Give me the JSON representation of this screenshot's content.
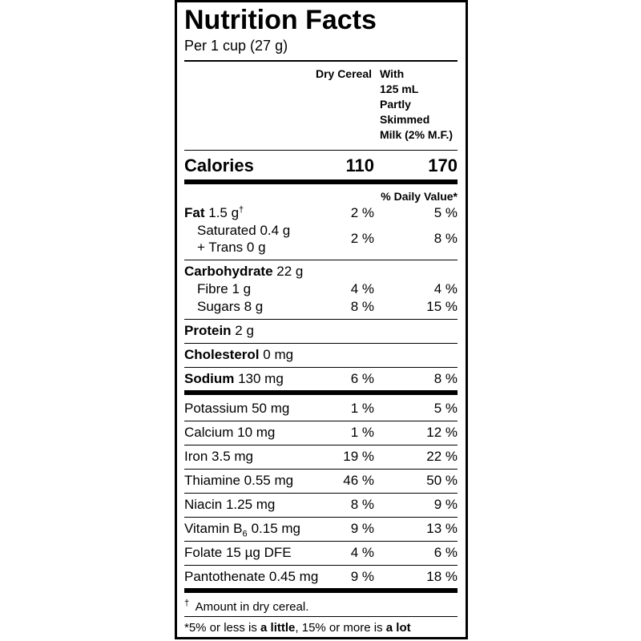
{
  "title": "Nutrition Facts",
  "serving": "Per 1 cup (27 g)",
  "column_headers": {
    "dry": "Dry Cereal",
    "milk": [
      "With",
      "125 mL",
      "Partly",
      "Skimmed",
      "Milk (2% M.F.)"
    ]
  },
  "calories": {
    "label": "Calories",
    "dry": "110",
    "milk": "170"
  },
  "daily_value_header": "% Daily Value*",
  "fat": {
    "label": "Fat",
    "amount": "1.5 g",
    "note_mark": "†",
    "dry": "2 %",
    "milk": "5 %"
  },
  "saturated": {
    "line1": "Saturated 0.4 g",
    "line2": "+ Trans 0 g",
    "dry": "2 %",
    "milk": "8 %"
  },
  "carbohydrate": {
    "label": "Carbohydrate",
    "amount": "22 g"
  },
  "fibre": {
    "label": "Fibre 1 g",
    "dry": "4 %",
    "milk": "4 %"
  },
  "sugars": {
    "label": "Sugars 8 g",
    "dry": "8 %",
    "milk": "15 %"
  },
  "protein": {
    "label": "Protein",
    "amount": "2 g"
  },
  "cholesterol": {
    "label": "Cholesterol",
    "amount": "0 mg"
  },
  "sodium": {
    "label": "Sodium",
    "amount": "130 mg",
    "dry": "6 %",
    "milk": "8 %"
  },
  "vitamins_minerals": [
    {
      "label": "Potassium 50 mg",
      "dry": "1 %",
      "milk": "5 %"
    },
    {
      "label": "Calcium 10 mg",
      "dry": "1 %",
      "milk": "12 %"
    },
    {
      "label": "Iron 3.5 mg",
      "dry": "19 %",
      "milk": "22 %"
    },
    {
      "label": "Thiamine 0.55 mg",
      "dry": "46 %",
      "milk": "50 %"
    },
    {
      "label": "Niacin 1.25 mg",
      "dry": "8 %",
      "milk": "9 %"
    },
    {
      "label": "Vitamin B",
      "subscript": "6",
      "amount": "0.15 mg",
      "dry": "9 %",
      "milk": "13 %"
    },
    {
      "label": "Folate 15 µg DFE",
      "dry": "4 %",
      "milk": "6 %"
    },
    {
      "label": "Pantothenate 0.45 mg",
      "dry": "9 %",
      "milk": "18 %"
    }
  ],
  "footnote": {
    "mark": "†",
    "text": "Amount in dry cereal."
  },
  "legend": {
    "part1": "*5% or less is",
    "bold1": "a little",
    "part2": ", 15% or more is",
    "bold2": "a lot"
  }
}
